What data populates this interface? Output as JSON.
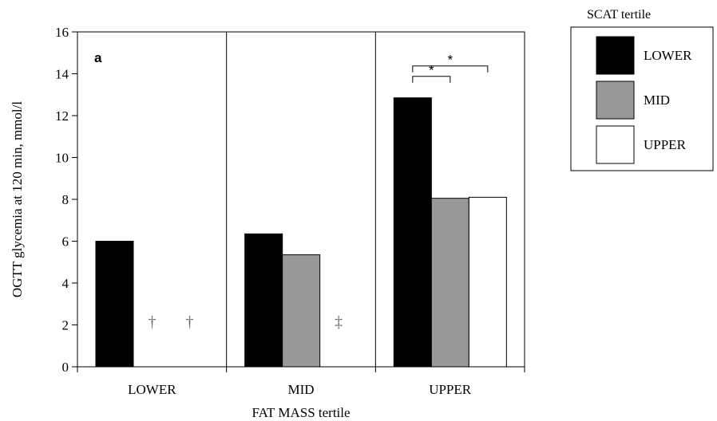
{
  "chart_data": {
    "type": "bar",
    "panel_label": "a",
    "xlabel": "FAT MASS tertile",
    "ylabel": "OGTT glycemia at 120 min, mmol/l",
    "ylim": [
      0,
      16
    ],
    "yticks": [
      0,
      2,
      4,
      6,
      8,
      10,
      12,
      14,
      16
    ],
    "categories": [
      "LOWER",
      "MID",
      "UPPER"
    ],
    "legend": {
      "title": "SCAT tertile",
      "position": "right"
    },
    "series": [
      {
        "name": "LOWER",
        "color": "#000000",
        "values": [
          6.0,
          6.35,
          12.85
        ]
      },
      {
        "name": "MID",
        "color": "#999999",
        "values": [
          null,
          5.35,
          8.05
        ]
      },
      {
        "name": "UPPER",
        "color": "#ffffff",
        "values": [
          null,
          null,
          8.1
        ]
      }
    ],
    "missing_markers": [
      {
        "category": "LOWER",
        "series": "MID",
        "symbol": "†"
      },
      {
        "category": "LOWER",
        "series": "UPPER",
        "symbol": "†"
      },
      {
        "category": "MID",
        "series": "UPPER",
        "symbol": "‡"
      }
    ],
    "significance": [
      {
        "category": "UPPER",
        "from": "LOWER",
        "to": "UPPER",
        "label": "*"
      },
      {
        "category": "UPPER",
        "from": "LOWER",
        "to": "MID",
        "label": "*"
      }
    ],
    "grid": false
  }
}
